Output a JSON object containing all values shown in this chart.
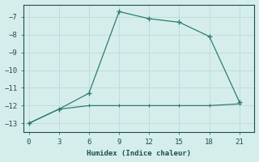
{
  "line1_x": [
    0,
    3,
    6,
    9,
    12,
    15,
    18,
    21
  ],
  "line1_y": [
    -13,
    -12.2,
    -11.3,
    -6.7,
    -7.1,
    -7.3,
    -8.1,
    -11.8
  ],
  "line2_x": [
    0,
    3,
    6,
    9,
    12,
    15,
    18,
    21
  ],
  "line2_y": [
    -13,
    -12.2,
    -12.0,
    -12.0,
    -12.0,
    -12.0,
    -12.0,
    -11.9
  ],
  "line_color": "#2e7d6e",
  "bg_color": "#d6eeeb",
  "grid_color": "#c0dcda",
  "xlabel": "Humidex (Indice chaleur)",
  "ylim": [
    -13.5,
    -6.3
  ],
  "xlim": [
    -0.5,
    22.5
  ],
  "xticks": [
    0,
    3,
    6,
    9,
    12,
    15,
    18,
    21
  ],
  "yticks": [
    -13,
    -12,
    -11,
    -10,
    -9,
    -8,
    -7
  ],
  "tick_color": "#1a5050",
  "label_color": "#1a5050"
}
